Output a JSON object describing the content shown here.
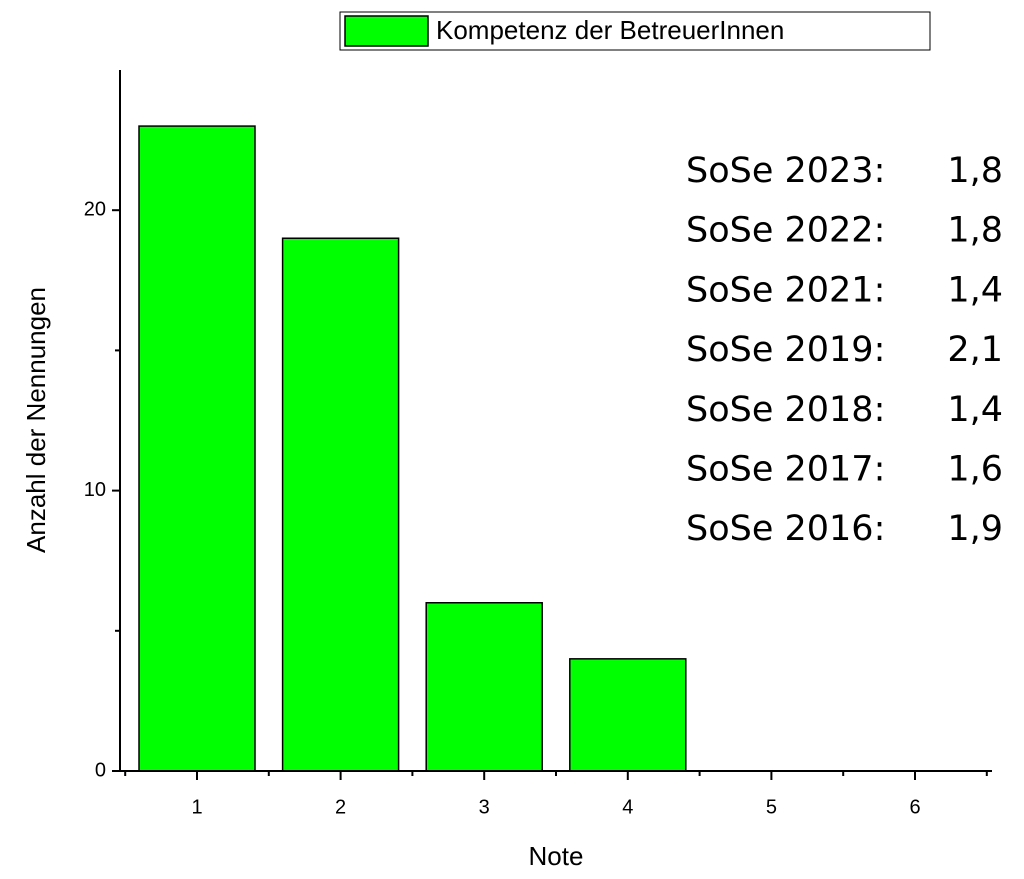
{
  "chart_data": {
    "type": "bar",
    "legend": "Kompetenz der BetreuerInnen",
    "x_label": "Note",
    "y_label": "Anzahl der Nennungen",
    "categories": [
      "1",
      "2",
      "3",
      "4",
      "5",
      "6"
    ],
    "values": [
      23,
      19,
      6,
      4,
      0,
      0
    ],
    "color": "#00ff00",
    "ylim": [
      0,
      25
    ],
    "yticks": [
      0,
      10,
      20
    ],
    "yminorticks": [
      5,
      15
    ],
    "annotations": [
      {
        "label": "SoSe 2023:",
        "value": "1,8",
        "color": "#2e75b6"
      },
      {
        "label": "SoSe 2022:",
        "value": "1,8",
        "color": "#000000"
      },
      {
        "label": "SoSe 2021:",
        "value": "1,4",
        "color": "#000000"
      },
      {
        "label": "SoSe 2019:",
        "value": "2,1",
        "color": "#000000"
      },
      {
        "label": "SoSe 2018:",
        "value": "1,4",
        "color": "#000000"
      },
      {
        "label": "SoSe 2017:",
        "value": "1,6",
        "color": "#000000"
      },
      {
        "label": "SoSe 2016:",
        "value": "1,9",
        "color": "#000000"
      }
    ]
  }
}
